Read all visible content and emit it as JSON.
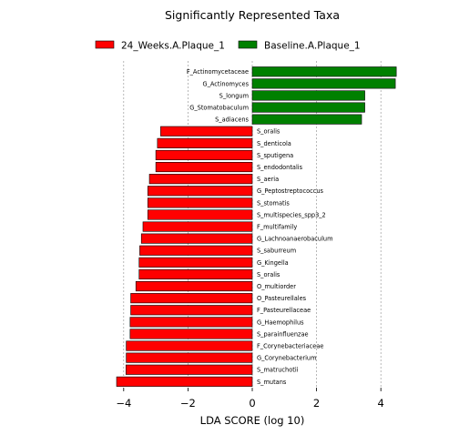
{
  "chart_data": {
    "type": "bar",
    "orientation": "horizontal",
    "title": "Significantly Represented Taxa",
    "xlabel": "LDA SCORE (log 10)",
    "ylabel": "",
    "xlim": [
      -4.7,
      4.9
    ],
    "xticks": [
      -4,
      -2,
      0,
      2,
      4
    ],
    "xtick_labels": [
      "−4",
      "−2",
      "0",
      "2",
      "4"
    ],
    "grid": "vertical dashed at x ticks",
    "legend_position": "top",
    "legend": [
      {
        "name": "24_Weeks.A.Plaque_1",
        "color": "#ff0000"
      },
      {
        "name": "Baseline.A.Plaque_1",
        "color": "#008000"
      }
    ],
    "bars": [
      {
        "label": "F_Actinomycetaceae",
        "value": 4.48,
        "group": 1
      },
      {
        "label": "G_Actinomyces",
        "value": 4.45,
        "group": 1
      },
      {
        "label": "S_longum",
        "value": 3.5,
        "group": 1
      },
      {
        "label": "G_Stomatobaculum",
        "value": 3.5,
        "group": 1
      },
      {
        "label": "S_adiacens",
        "value": 3.4,
        "group": 1
      },
      {
        "label": "S_oralis",
        "value": -2.85,
        "group": 0
      },
      {
        "label": "S_denticola",
        "value": -2.95,
        "group": 0
      },
      {
        "label": "S_sputigena",
        "value": -3.0,
        "group": 0
      },
      {
        "label": "S_endodontalis",
        "value": -3.0,
        "group": 0
      },
      {
        "label": "S_aeria",
        "value": -3.2,
        "group": 0
      },
      {
        "label": "G_Peptostreptococcus",
        "value": -3.25,
        "group": 0
      },
      {
        "label": "S_stomatis",
        "value": -3.25,
        "group": 0
      },
      {
        "label": "S_multispecies_spp3_2",
        "value": -3.25,
        "group": 0
      },
      {
        "label": "F_multifamily",
        "value": -3.4,
        "group": 0
      },
      {
        "label": "G_Lachnoanaerobaculum",
        "value": -3.45,
        "group": 0
      },
      {
        "label": "S_saburreum",
        "value": -3.5,
        "group": 0
      },
      {
        "label": "G_Kingella",
        "value": -3.52,
        "group": 0
      },
      {
        "label": "S_oralis",
        "value": -3.52,
        "group": 0
      },
      {
        "label": "O_multiorder",
        "value": -3.62,
        "group": 0
      },
      {
        "label": "O_Pasteurellales",
        "value": -3.78,
        "group": 0
      },
      {
        "label": "F_Pasteurellaceae",
        "value": -3.78,
        "group": 0
      },
      {
        "label": "G_Haemophilus",
        "value": -3.8,
        "group": 0
      },
      {
        "label": "S_parainfluenzae",
        "value": -3.8,
        "group": 0
      },
      {
        "label": "F_Corynebacteriaceae",
        "value": -3.92,
        "group": 0
      },
      {
        "label": "G_Corynebacterium",
        "value": -3.92,
        "group": 0
      },
      {
        "label": "S_matruchotii",
        "value": -3.93,
        "group": 0
      },
      {
        "label": "S_mutans",
        "value": -4.22,
        "group": 0
      }
    ]
  }
}
